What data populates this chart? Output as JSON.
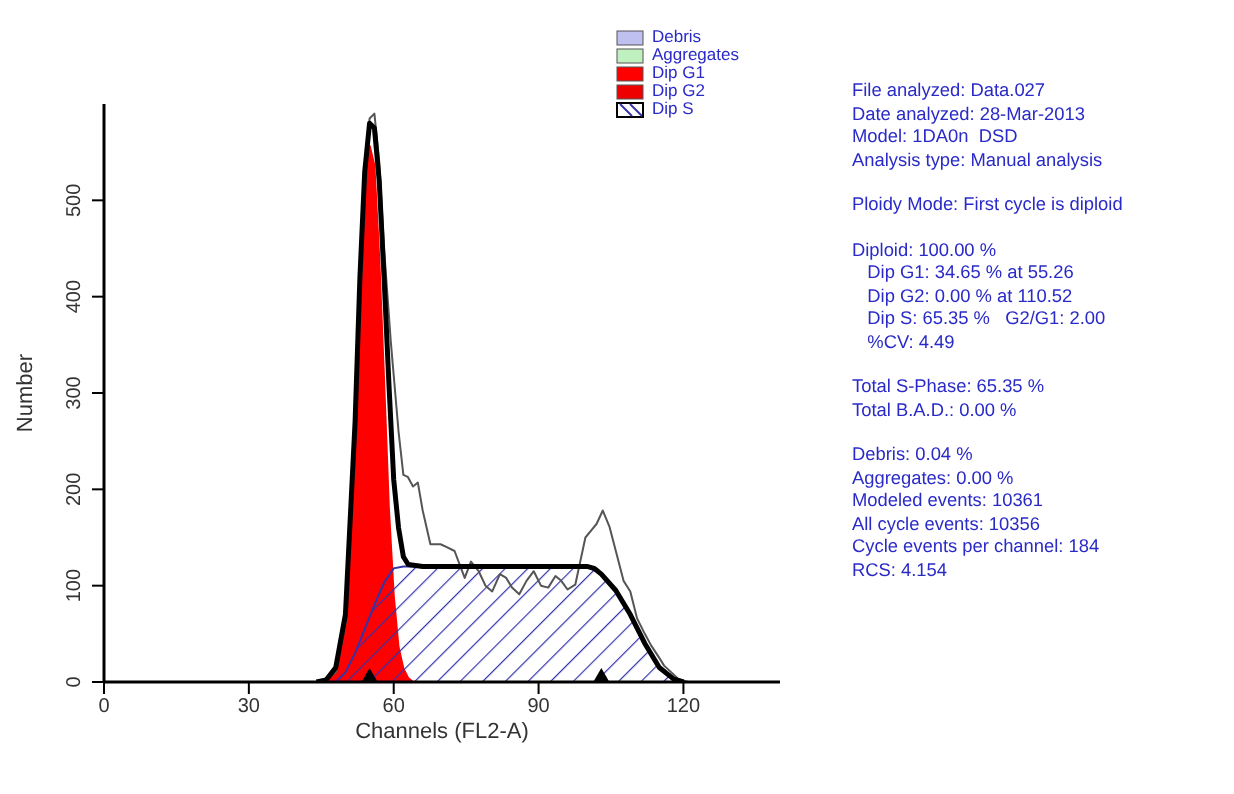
{
  "chart_data": {
    "type": "area",
    "xlabel": "Channels (FL2-A)",
    "ylabel": "Number",
    "xlim": [
      0,
      140
    ],
    "xticks": [
      0,
      30,
      60,
      90,
      120
    ],
    "ylim": [
      0,
      600
    ],
    "yticks": [
      0,
      100,
      200,
      300,
      400,
      500
    ],
    "legend": "top right",
    "series": [
      {
        "name": "Debris",
        "color": "#c0c0f0"
      },
      {
        "name": "Aggregates",
        "color": "#c0f0c0"
      },
      {
        "name": "Dip G1",
        "color": "#ff0000",
        "x": [
          44,
          46,
          48,
          50,
          52,
          53,
          54,
          55,
          56,
          57,
          58,
          59,
          60,
          61,
          62,
          63,
          64
        ],
        "values": [
          0,
          1,
          8,
          56,
          235,
          370,
          490,
          557,
          536,
          440,
          314,
          180,
          90,
          36,
          14,
          4,
          0
        ]
      },
      {
        "name": "Dip G2",
        "color": "#ee0000"
      },
      {
        "name": "Dip S",
        "color": "#3333aa",
        "x": [
          48,
          50,
          52,
          54,
          56,
          58,
          60,
          62,
          100,
          103,
          106,
          109,
          112,
          115,
          118,
          120
        ],
        "values": [
          0,
          10,
          30,
          55,
          80,
          103,
          118,
          120,
          120,
          112,
          95,
          70,
          40,
          15,
          2,
          0
        ]
      },
      {
        "type": "line",
        "color": "#555555",
        "line_style": "solid",
        "x": [
          44,
          46,
          48,
          50,
          52,
          53,
          54,
          55,
          56,
          57,
          58,
          59.4,
          61,
          62,
          62.9,
          64,
          65,
          66,
          67.6,
          69.7,
          71,
          72.6,
          74.7,
          76,
          77.6,
          79,
          80.4,
          82,
          83.3,
          84.5,
          86,
          87.5,
          89,
          90.5,
          92,
          93.5,
          94.7,
          96,
          97.6,
          99.7,
          101,
          102,
          103.3,
          104.7,
          106,
          107.6,
          109,
          110.4,
          112,
          113.3,
          115,
          116,
          117.5,
          119,
          121
        ],
        "values": [
          0,
          2,
          10,
          60,
          250,
          390,
          510,
          585,
          590,
          540,
          450,
          353,
          260,
          215,
          213,
          203,
          207,
          178,
          143,
          143,
          140,
          136,
          108,
          125,
          115,
          100,
          94,
          112,
          108,
          98,
          91,
          105,
          115,
          100,
          98,
          110,
          105,
          96,
          101,
          150,
          158,
          164,
          178,
          161,
          136,
          105,
          94,
          66,
          50,
          38,
          25,
          17,
          10,
          3,
          0
        ]
      },
      {
        "type": "line",
        "color": "#000000",
        "line_style": "solid",
        "x": [
          44,
          46,
          48,
          50,
          52,
          53,
          54,
          55,
          56,
          57,
          58,
          59,
          60,
          61,
          62,
          63,
          66,
          70,
          80,
          90,
          100,
          101.5,
          103,
          106,
          109,
          112,
          115,
          118,
          120
        ],
        "values": [
          0,
          2,
          15,
          70,
          270,
          420,
          530,
          580,
          575,
          520,
          420,
          310,
          210,
          160,
          130,
          122,
          120,
          120,
          120,
          120,
          120,
          118,
          112,
          95,
          70,
          40,
          15,
          3,
          0
        ]
      },
      {
        "type": "scatter",
        "color": "#000000",
        "marker": "triangle",
        "x": [
          55,
          103
        ],
        "values": [
          0,
          0
        ]
      }
    ],
    "annotations": [
      "File analyzed: Data.027\nDate analyzed: 28-Mar-2013\nModel: 1DA0n  DSD\nAnalysis type: Manual analysis",
      "Ploidy Mode: First cycle is diploid",
      "Diploid: 100.00 %\n   Dip G1: 34.65 % at 55.26\n   Dip G2: 0.00 % at 110.52\n   Dip S: 65.35 %   G2/G1: 2.00\n   %CV: 4.49",
      "Total S-Phase: 65.35 %\nTotal B.A.D.: 0.00 %",
      "Debris: 0.04 %\nAggregates: 0.00 %\nModeled events: 10361\nAll cycle events: 10356\nCycle events per channel: 184\nRCS: 4.154"
    ]
  }
}
